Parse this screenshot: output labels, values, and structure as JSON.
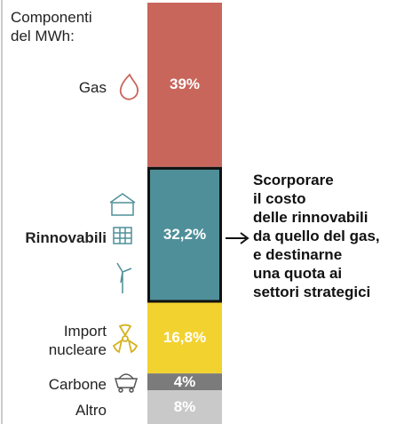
{
  "chart_data": {
    "type": "stacked-bar",
    "title": "Componenti\ndel MWh:",
    "categories": [
      "Gas",
      "Rinnovabili",
      "Import\nnucleare",
      "Carbone",
      "Altro"
    ],
    "values": [
      39,
      32.2,
      16.8,
      4,
      8
    ],
    "value_labels": [
      "39%",
      "32,2%",
      "16,8%",
      "4%",
      "8%"
    ],
    "colors": [
      "#c9665b",
      "#4f8f99",
      "#f2d22f",
      "#7b7b7b",
      "#c9c9c9"
    ],
    "highlight": "Rinnovabili",
    "annotation": "Scorporare\nil costo\ndelle rinnovabili\nda quello del gas,\ne destinarne\nuna quota ai\nsettori strategici"
  }
}
